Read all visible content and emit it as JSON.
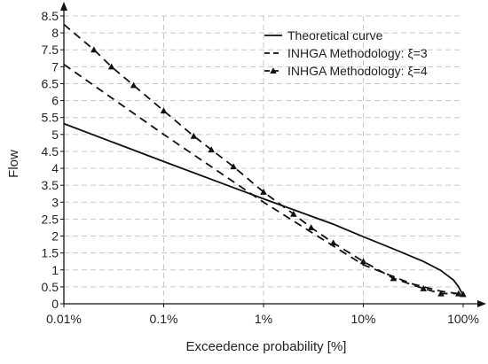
{
  "chart_data": {
    "type": "line",
    "title": "",
    "xlabel": "Exceedence probability [%]",
    "ylabel": "Flow",
    "x_scale": "log",
    "xlim": [
      0.01,
      100
    ],
    "ylim": [
      0,
      8.5
    ],
    "grid": true,
    "legend_position": "top-right",
    "x_ticks": [
      {
        "value": 0.01,
        "label": "0.01%"
      },
      {
        "value": 0.1,
        "label": "0.1%"
      },
      {
        "value": 1,
        "label": "1%"
      },
      {
        "value": 10,
        "label": "10%"
      },
      {
        "value": 100,
        "label": "100%"
      }
    ],
    "y_ticks": [
      {
        "value": 0,
        "label": "0"
      },
      {
        "value": 0.5,
        "label": "0.5"
      },
      {
        "value": 1,
        "label": "1"
      },
      {
        "value": 1.5,
        "label": "1.5"
      },
      {
        "value": 2,
        "label": "2"
      },
      {
        "value": 2.5,
        "label": "2.5"
      },
      {
        "value": 3,
        "label": "3"
      },
      {
        "value": 3.5,
        "label": "3.5"
      },
      {
        "value": 4,
        "label": "4"
      },
      {
        "value": 4.5,
        "label": "4.5"
      },
      {
        "value": 5,
        "label": "5"
      },
      {
        "value": 5.5,
        "label": "5.5"
      },
      {
        "value": 6,
        "label": "6"
      },
      {
        "value": 6.5,
        "label": "6.5"
      },
      {
        "value": 7,
        "label": "7"
      },
      {
        "value": 7.5,
        "label": "7.5"
      },
      {
        "value": 8,
        "label": "8"
      },
      {
        "value": 8.5,
        "label": "8.5"
      }
    ],
    "series": [
      {
        "name": "Theoretical curve",
        "style": "solid",
        "marker": "none",
        "color": "#111111",
        "x": [
          0.01,
          0.1,
          1,
          5,
          10,
          20,
          40,
          60,
          80,
          90,
          95,
          100
        ],
        "y": [
          5.32,
          4.2,
          3.1,
          2.35,
          1.98,
          1.62,
          1.25,
          0.98,
          0.7,
          0.5,
          0.37,
          0.28
        ]
      },
      {
        "name": "INHGA Methodology: ξ=3",
        "style": "dashed",
        "marker": "none",
        "color": "#111111",
        "x": [
          0.01,
          0.1,
          1,
          10,
          30,
          60,
          100
        ],
        "y": [
          7.07,
          5.0,
          3.0,
          1.15,
          0.6,
          0.37,
          0.28
        ]
      },
      {
        "name": "INHGA Methodology: ξ=4",
        "style": "dashed",
        "marker": "triangle",
        "color": "#111111",
        "x": [
          0.01,
          0.02,
          0.03,
          0.05,
          0.1,
          0.2,
          0.3,
          0.5,
          1,
          2,
          3,
          5,
          10,
          20,
          40,
          60,
          90,
          100
        ],
        "y": [
          8.25,
          7.5,
          7.0,
          6.45,
          5.7,
          4.95,
          4.55,
          4.05,
          3.3,
          2.65,
          2.25,
          1.8,
          1.25,
          0.75,
          0.45,
          0.3,
          0.3,
          0.28
        ]
      }
    ]
  }
}
